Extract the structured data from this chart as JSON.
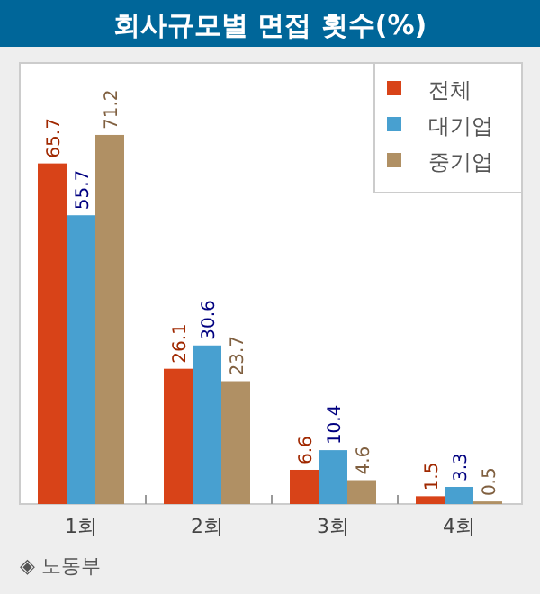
{
  "chart_data": {
    "type": "bar",
    "title": "회사규모별 면접 횟수(%)",
    "categories": [
      "1회",
      "2회",
      "3회",
      "4회"
    ],
    "series": [
      {
        "name": "전체",
        "color": "#d84318",
        "values": [
          65.7,
          26.1,
          6.6,
          1.5
        ]
      },
      {
        "name": "대기업",
        "color": "#48a0d0",
        "values": [
          55.7,
          30.6,
          10.4,
          3.3
        ]
      },
      {
        "name": "중기업",
        "color": "#b09064",
        "values": [
          71.2,
          23.7,
          4.6,
          0.5
        ]
      }
    ],
    "data_labels": true,
    "legend": "top right",
    "grid": false,
    "annotations": [
      "◈ 노동부"
    ]
  }
}
